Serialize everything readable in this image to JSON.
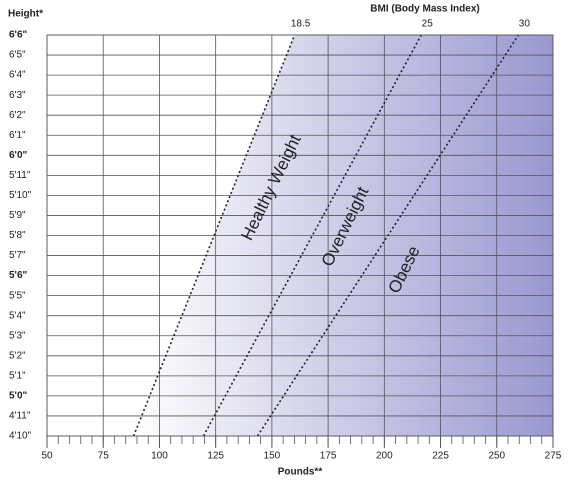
{
  "chart_data": {
    "type": "line",
    "title": "BMI (Body Mass Index)",
    "y_label": "Height*",
    "x_label": "Pounds**",
    "xlim": [
      50,
      275
    ],
    "ylim": [
      58,
      78
    ],
    "xticks": [
      50,
      75,
      100,
      125,
      150,
      175,
      200,
      225,
      250,
      275
    ],
    "xminorticks": [
      50,
      55,
      60,
      65,
      70,
      75,
      80,
      85,
      90,
      95,
      100,
      105,
      110,
      115,
      120,
      125,
      130,
      135,
      140,
      145,
      150,
      155,
      160,
      165,
      170,
      175,
      180,
      185,
      190,
      195,
      200,
      205,
      210,
      215,
      220,
      225,
      230,
      235,
      240,
      245,
      250,
      255,
      260,
      265,
      270,
      275
    ],
    "yticks": [
      {
        "value": 78,
        "label": "6'6\""
      },
      {
        "value": 77,
        "label": "6'5\""
      },
      {
        "value": 76,
        "label": "6'4\""
      },
      {
        "value": 75,
        "label": "6'3\""
      },
      {
        "value": 74,
        "label": "6'2\""
      },
      {
        "value": 73,
        "label": "6'1\""
      },
      {
        "value": 72,
        "label": "6'0\""
      },
      {
        "value": 71,
        "label": "5'11\""
      },
      {
        "value": 70,
        "label": "5'10\""
      },
      {
        "value": 69,
        "label": "5'9\""
      },
      {
        "value": 68,
        "label": "5'8\""
      },
      {
        "value": 67,
        "label": "5'7\""
      },
      {
        "value": 66,
        "label": "5'6\""
      },
      {
        "value": 65,
        "label": "5'5\""
      },
      {
        "value": 64,
        "label": "5'4\""
      },
      {
        "value": 63,
        "label": "5'3\""
      },
      {
        "value": 62,
        "label": "5'2\""
      },
      {
        "value": 61,
        "label": "5'1\""
      },
      {
        "value": 60,
        "label": "5'0\""
      },
      {
        "value": 59,
        "label": "4'11\""
      },
      {
        "value": 58,
        "label": "4'10\""
      }
    ],
    "grid": true,
    "gradient": [
      "#ffffff",
      "#9a98d0"
    ],
    "series": [
      {
        "name": "18.5",
        "color": "#222222",
        "x": [
          88.5,
          160.1
        ],
        "values": [
          58,
          78
        ]
      },
      {
        "name": "25",
        "color": "#222222",
        "x": [
          119.6,
          216.4
        ],
        "values": [
          58,
          78
        ]
      },
      {
        "name": "30",
        "color": "#222222",
        "x": [
          143.6,
          259.6
        ],
        "values": [
          58,
          78
        ]
      }
    ],
    "annotations": [
      "Healthy Weight",
      "Overweight",
      "Obese"
    ]
  }
}
